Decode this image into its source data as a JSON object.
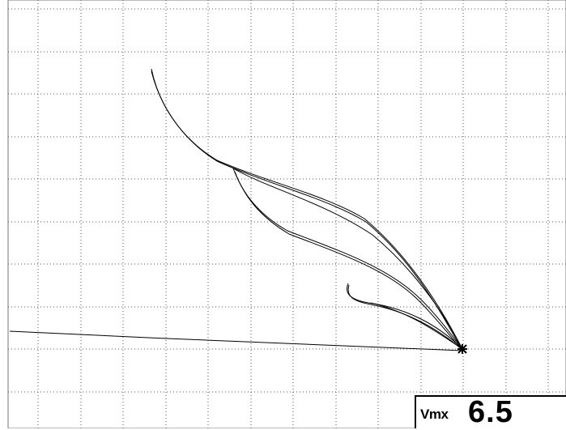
{
  "readout": {
    "label": "Vmx",
    "value": "6.5"
  },
  "display": {
    "background": "#ffffff",
    "grid_color": "#555555",
    "trace_color": "#000000",
    "grid_columns": 13,
    "grid_rows": 10
  }
}
